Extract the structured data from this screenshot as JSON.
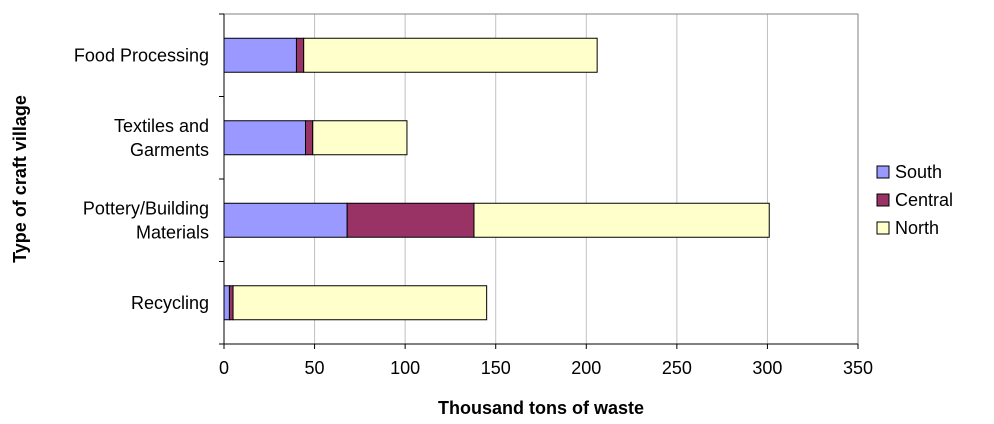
{
  "chart_data": {
    "type": "bar",
    "orientation": "horizontal",
    "stacked": true,
    "categories": [
      "Recycling",
      "Pottery/Building Materials",
      "Textiles and Garments",
      "Food Processing"
    ],
    "category_lines": [
      [
        "Recycling"
      ],
      [
        "Pottery/Building",
        "Materials"
      ],
      [
        "Textiles and",
        "Garments"
      ],
      [
        "Food Processing"
      ]
    ],
    "series": [
      {
        "name": "South",
        "color": "#9999ff",
        "values": [
          3,
          68,
          45,
          40
        ]
      },
      {
        "name": "Central",
        "color": "#993366",
        "values": [
          2,
          70,
          4,
          4
        ]
      },
      {
        "name": "North",
        "color": "#ffffcc",
        "values": [
          140,
          163,
          52,
          162
        ]
      }
    ],
    "xlabel": "Thousand tons of waste",
    "ylabel": "Type of craft village",
    "xlim": [
      0,
      350
    ],
    "xticks": [
      0,
      50,
      100,
      150,
      200,
      250,
      300,
      350
    ],
    "grid": "vertical",
    "legend_position": "right"
  }
}
